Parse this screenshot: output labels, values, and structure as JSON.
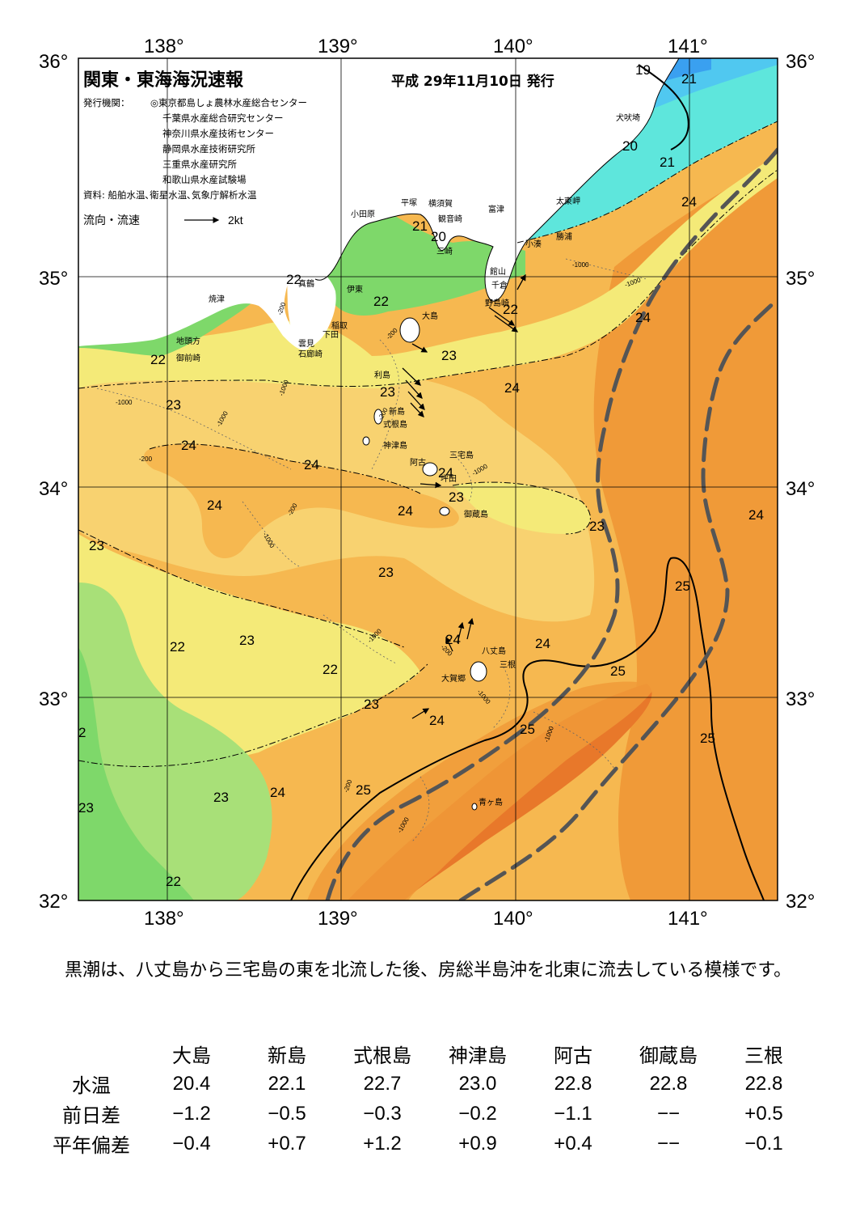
{
  "map": {
    "title": "関東・東海海況速報",
    "issue_date": "平成  29年11月10日  発行",
    "issuer_heading": "発行機関：",
    "issuers": [
      "◎東京都島しょ農林水産総合センター",
      "千葉県水産総合研究センター",
      "神奈川県水産技術センター",
      "静岡県水産技術研究所",
      "三重県水産研究所",
      "和歌山県水産試験場"
    ],
    "sources": "資料: 船舶水温､衛星水温､気象庁解析水温",
    "legend_label": "流向・流速",
    "legend_scale": "2kt",
    "lon_labels": [
      "138°",
      "139°",
      "140°",
      "141°"
    ],
    "lat_labels": [
      "36°",
      "35°",
      "34°",
      "33°",
      "32°"
    ],
    "contour_labels": [
      "19",
      "21",
      "20",
      "21",
      "24",
      "21",
      "20",
      "22",
      "22",
      "22",
      "24",
      "23",
      "22",
      "24",
      "23",
      "23",
      "24",
      "24",
      "24",
      "24",
      "23",
      "24",
      "23",
      "23",
      "25",
      "23",
      "22",
      "24",
      "24",
      "22",
      "23",
      "25",
      "25",
      "23",
      "24",
      "25",
      "24",
      "2",
      "23",
      "22",
      "24",
      "25",
      "23"
    ],
    "depth_labels": [
      "-200",
      "-1000",
      "-200",
      "-1000",
      "-1000",
      "-200",
      "-1000",
      "-1000",
      "-200",
      "-200",
      "-1000",
      "-1000",
      "-1000",
      "-200",
      "-1000",
      "-1000",
      "-200",
      "-1000"
    ],
    "place_names": {
      "inubozaki": "犬吠埼",
      "taitomisaki": "太東岬",
      "katsuura": "勝浦",
      "kominato": "小湊",
      "tateyama": "館山",
      "chikura": "千倉",
      "nojimazaki": "野島崎",
      "futtsu": "富津",
      "yokosuka": "横須賀",
      "kannonzaki": "観音崎",
      "hiratsuka": "平塚",
      "odawara": "小田原",
      "manazuru": "真鶴",
      "miura": "三崎",
      "ito": "伊東",
      "inatori": "稲取",
      "shimoda": "下田",
      "iromisaki": "石廊崎",
      "unomi": "雲見",
      "yaizu": "焼津",
      "jitogata": "地頭方",
      "omaezaki": "御前崎",
      "oshima": "大島",
      "toshima": "利島",
      "niijima": "新島",
      "shikinejima": "式根島",
      "kozushima": "神津島",
      "miyakejima": "三宅島",
      "ako": "阿古",
      "tsubota": "坪田",
      "mikurajima": "御蔵島",
      "hachijojima": "八丈島",
      "mitsune": "三根",
      "okago": "大賀郷",
      "aogashima": "青ヶ島"
    }
  },
  "description": "　黒潮は、八丈島から三宅島の東を北流した後、房総半島沖を北東に流去している模様です。",
  "table": {
    "columns": [
      "大島",
      "新島",
      "式根島",
      "神津島",
      "阿古",
      "御蔵島",
      "三根"
    ],
    "rows": [
      {
        "label": "水温",
        "values": [
          "20.4",
          "22.1",
          "22.7",
          "23.0",
          "22.8",
          "22.8",
          "22.8"
        ]
      },
      {
        "label": "前日差",
        "values": [
          "−1.2",
          "−0.5",
          "−0.3",
          "−0.2",
          "−1.1",
          "−−",
          "+0.5"
        ]
      },
      {
        "label": "平年偏差",
        "values": [
          "−0.4",
          "+0.7",
          "+1.2",
          "+0.9",
          "+0.4",
          "−−",
          "−0.1"
        ]
      }
    ]
  },
  "colors": {
    "t19": "#3aa0f0",
    "t20": "#50c8f0",
    "t21": "#5ee6dc",
    "t22": "#7ed86a",
    "t22b": "#a8e078",
    "t23": "#f4ea78",
    "t23b": "#f8d270",
    "t24": "#f6b850",
    "t25": "#f09a38",
    "t26": "#e8782a",
    "land": "#ffffff",
    "kuroshio": "#555555"
  }
}
